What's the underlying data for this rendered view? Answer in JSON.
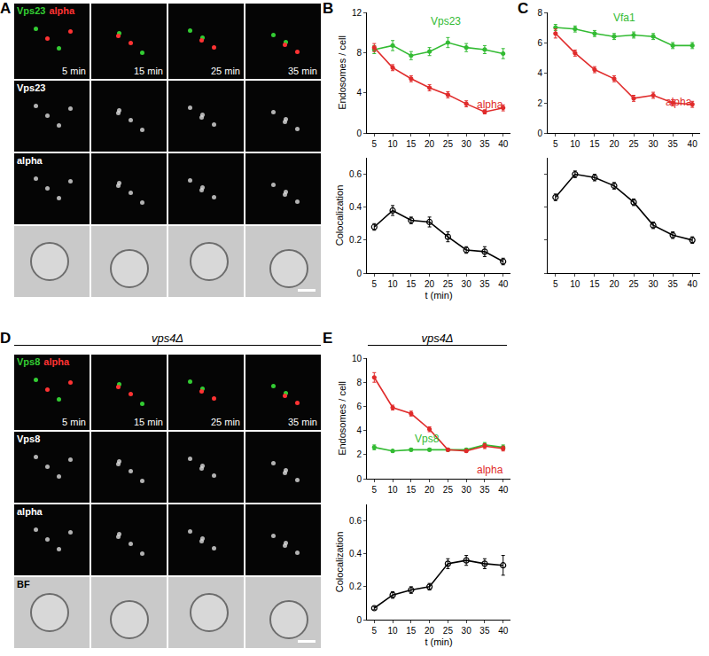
{
  "image_panels": [
    {
      "letter": "A",
      "merge": [
        {
          "text": "Vps23",
          "color": "#33cc33"
        },
        {
          "text": "alpha",
          "color": "#ff3333"
        }
      ],
      "channels": [
        "Vps23",
        "alpha"
      ],
      "times": [
        "5 min",
        "15 min",
        "25 min",
        "35 min"
      ]
    },
    {
      "letter": "D",
      "header": "vps4Δ",
      "merge": [
        {
          "text": "Vps8",
          "color": "#33cc33"
        },
        {
          "text": "alpha",
          "color": "#ff3333"
        }
      ],
      "channels": [
        "Vps8",
        "alpha"
      ],
      "bottom_label": "BF",
      "times": [
        "5 min",
        "15 min",
        "25 min",
        "35 min"
      ]
    }
  ],
  "chart_panels": [
    {
      "letter": "B"
    },
    {
      "letter": "C"
    },
    {
      "letter": "E",
      "header": "vps4Δ"
    }
  ],
  "chart_data": [
    {
      "type": "line",
      "ylabel": "Endosomes / cell",
      "x": [
        5,
        10,
        15,
        20,
        25,
        30,
        35,
        40
      ],
      "xlim": [
        3,
        42
      ],
      "xticks": [
        5,
        10,
        15,
        20,
        25,
        30,
        35,
        40
      ],
      "ylim": [
        0,
        12
      ],
      "yticks": [
        0,
        4,
        8,
        12
      ],
      "grid": false,
      "series": [
        {
          "name": "Vps23",
          "color": "#33bb33",
          "marker": "circle",
          "line_style": "solid",
          "values": [
            8.3,
            8.7,
            7.7,
            8.1,
            9.0,
            8.5,
            8.3,
            7.9
          ],
          "errors": [
            0.4,
            0.5,
            0.4,
            0.4,
            0.5,
            0.4,
            0.4,
            0.5
          ]
        },
        {
          "name": "alpha",
          "color": "#e02b2b",
          "marker": "circle",
          "line_style": "solid",
          "values": [
            8.5,
            6.5,
            5.4,
            4.5,
            3.8,
            2.9,
            2.1,
            2.5
          ],
          "errors": [
            0.4,
            0.3,
            0.3,
            0.3,
            0.3,
            0.3,
            0.2,
            0.3
          ]
        }
      ]
    },
    {
      "type": "line",
      "ylabel": "Colocalization",
      "xlabel": "t (min)",
      "x": [
        5,
        10,
        15,
        20,
        25,
        30,
        35,
        40
      ],
      "xlim": [
        3,
        42
      ],
      "xticks": [
        5,
        10,
        15,
        20,
        25,
        30,
        35,
        40
      ],
      "ylim": [
        0,
        0.7
      ],
      "yticks": [
        0,
        0.2,
        0.4,
        0.6
      ],
      "grid": false,
      "series": [
        {
          "color": "#000000",
          "marker": "circle-open",
          "line_style": "solid",
          "values": [
            0.28,
            0.38,
            0.32,
            0.31,
            0.22,
            0.14,
            0.13,
            0.07
          ],
          "errors": [
            0.02,
            0.03,
            0.02,
            0.03,
            0.03,
            0.02,
            0.03,
            0.02
          ]
        }
      ]
    },
    {
      "type": "line",
      "x": [
        5,
        10,
        15,
        20,
        25,
        30,
        35,
        40
      ],
      "xlim": [
        3,
        42
      ],
      "xticks": [
        5,
        10,
        15,
        20,
        25,
        30,
        35,
        40
      ],
      "ylim": [
        0,
        8
      ],
      "yticks": [
        0,
        2,
        4,
        6,
        8
      ],
      "grid": false,
      "series": [
        {
          "name": "Vfa1",
          "color": "#33bb33",
          "marker": "circle",
          "line_style": "solid",
          "values": [
            7.0,
            6.9,
            6.6,
            6.4,
            6.5,
            6.4,
            5.8,
            5.8
          ],
          "errors": [
            0.2,
            0.2,
            0.2,
            0.2,
            0.2,
            0.2,
            0.2,
            0.2
          ]
        },
        {
          "name": "alpha",
          "color": "#e02b2b",
          "marker": "circle",
          "line_style": "solid",
          "values": [
            6.6,
            5.3,
            4.2,
            3.6,
            2.3,
            2.5,
            2.0,
            1.9
          ],
          "errors": [
            0.3,
            0.2,
            0.2,
            0.2,
            0.2,
            0.2,
            0.2,
            0.2
          ]
        }
      ]
    },
    {
      "type": "line",
      "x": [
        5,
        10,
        15,
        20,
        25,
        30,
        35,
        40
      ],
      "tick_labels": "x",
      "xlim": [
        3,
        42
      ],
      "xticks": [
        5,
        10,
        15,
        20,
        25,
        30,
        35,
        40
      ],
      "ylim": [
        0,
        0.7
      ],
      "yticks": [
        0,
        0.2,
        0.4,
        0.6
      ],
      "grid": false,
      "series": [
        {
          "color": "#000000",
          "marker": "circle-open",
          "line_style": "solid",
          "values": [
            0.46,
            0.6,
            0.58,
            0.53,
            0.43,
            0.29,
            0.23,
            0.2
          ],
          "errors": [
            0.02,
            0.02,
            0.02,
            0.02,
            0.02,
            0.02,
            0.02,
            0.02
          ]
        }
      ]
    },
    {
      "type": "line",
      "ylabel": "Endosomes / cell",
      "x": [
        5,
        10,
        15,
        20,
        25,
        30,
        35,
        40
      ],
      "xlim": [
        3,
        42
      ],
      "xticks": [
        5,
        10,
        15,
        20,
        25,
        30,
        35,
        40
      ],
      "ylim": [
        0,
        10
      ],
      "yticks": [
        0,
        2,
        4,
        6,
        8,
        10
      ],
      "grid": false,
      "series": [
        {
          "name": "Vps8",
          "color": "#33bb33",
          "marker": "circle",
          "line_style": "solid",
          "values": [
            2.6,
            2.3,
            2.4,
            2.4,
            2.4,
            2.4,
            2.8,
            2.6
          ],
          "errors": [
            0.2,
            0.1,
            0.1,
            0.1,
            0.1,
            0.1,
            0.2,
            0.2
          ]
        },
        {
          "name": "alpha",
          "color": "#e02b2b",
          "marker": "circle",
          "line_style": "solid",
          "values": [
            8.4,
            5.9,
            5.4,
            4.1,
            2.4,
            2.3,
            2.7,
            2.5
          ],
          "errors": [
            0.4,
            0.2,
            0.2,
            0.2,
            0.1,
            0.1,
            0.2,
            0.2
          ]
        }
      ]
    },
    {
      "type": "line",
      "ylabel": "Colocalization",
      "xlabel": "t (min)",
      "x": [
        5,
        10,
        15,
        20,
        25,
        30,
        35,
        40
      ],
      "xlim": [
        3,
        42
      ],
      "xticks": [
        5,
        10,
        15,
        20,
        25,
        30,
        35,
        40
      ],
      "ylim": [
        0,
        0.7
      ],
      "yticks": [
        0,
        0.2,
        0.4,
        0.6
      ],
      "grid": false,
      "series": [
        {
          "color": "#000000",
          "marker": "circle-open",
          "line_style": "solid",
          "values": [
            0.07,
            0.15,
            0.18,
            0.2,
            0.34,
            0.36,
            0.34,
            0.33
          ],
          "errors": [
            0.01,
            0.02,
            0.02,
            0.02,
            0.03,
            0.03,
            0.03,
            0.06
          ]
        }
      ]
    }
  ]
}
